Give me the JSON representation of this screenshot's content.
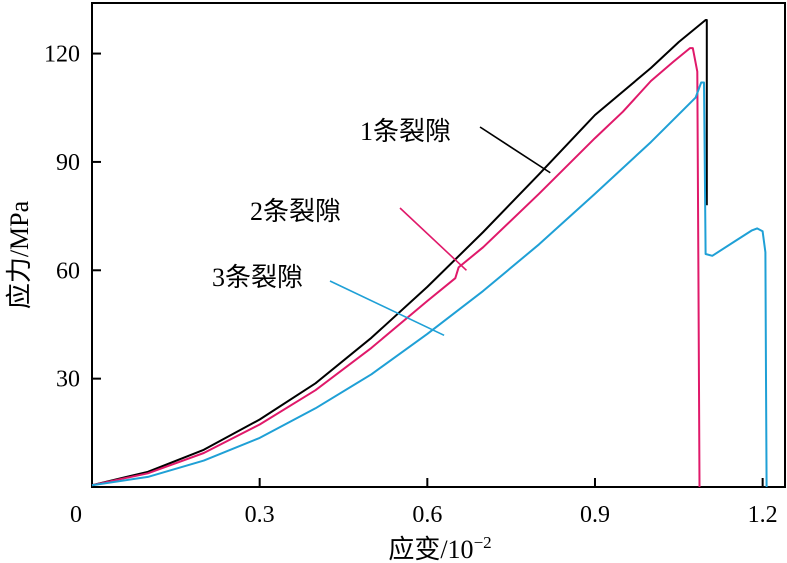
{
  "chart_data": {
    "type": "line",
    "xlabel": "应变/10",
    "xlabel_exp": "−2",
    "ylabel": "应力/MPa",
    "xlim": [
      0,
      1.24
    ],
    "ylim": [
      0,
      134
    ],
    "x_ticks": [
      0,
      0.3,
      0.6,
      0.9,
      1.2
    ],
    "x_tick_labels": [
      "0",
      "0.3",
      "0.6",
      "0.9",
      "1.2"
    ],
    "y_ticks": [
      30,
      60,
      90,
      120
    ],
    "y_tick_labels": [
      "30",
      "60",
      "90",
      "120"
    ],
    "grid": false,
    "series": [
      {
        "name": "1条裂隙",
        "color": "#000000",
        "points": [
          [
            0,
            0.5
          ],
          [
            0.1,
            4.2
          ],
          [
            0.2,
            10.3
          ],
          [
            0.3,
            18.7
          ],
          [
            0.4,
            28.7
          ],
          [
            0.5,
            41.3
          ],
          [
            0.6,
            55.4
          ],
          [
            0.7,
            70.6
          ],
          [
            0.8,
            86.6
          ],
          [
            0.9,
            103
          ],
          [
            1.0,
            116
          ],
          [
            1.05,
            123.2
          ],
          [
            1.098,
            129.3
          ],
          [
            1.1,
            129.3
          ],
          [
            1.1,
            78
          ]
        ],
        "label_anchor": [
          0.82,
          87
        ]
      },
      {
        "name": "2条裂隙",
        "color": "#e0196a",
        "points": [
          [
            0,
            0.5
          ],
          [
            0.1,
            3.8
          ],
          [
            0.2,
            9.4
          ],
          [
            0.3,
            17.3
          ],
          [
            0.4,
            26.8
          ],
          [
            0.5,
            38.5
          ],
          [
            0.6,
            51.5
          ],
          [
            0.65,
            57.8
          ],
          [
            0.656,
            60.8
          ],
          [
            0.7,
            66.4
          ],
          [
            0.8,
            81.2
          ],
          [
            0.9,
            96.6
          ],
          [
            0.95,
            103.9
          ],
          [
            1.0,
            112.4
          ],
          [
            1.04,
            117.7
          ],
          [
            1.07,
            121.5
          ],
          [
            1.075,
            121.5
          ],
          [
            1.083,
            115
          ],
          [
            1.085,
            60
          ],
          [
            1.087,
            0
          ]
        ],
        "label_anchor": [
          0.67,
          60
        ]
      },
      {
        "name": "3条裂隙",
        "color": "#1fa0d6",
        "points": [
          [
            0,
            0.5
          ],
          [
            0.1,
            2.8
          ],
          [
            0.2,
            7.3
          ],
          [
            0.3,
            13.6
          ],
          [
            0.4,
            21.8
          ],
          [
            0.5,
            31.2
          ],
          [
            0.6,
            42.4
          ],
          [
            0.7,
            54.3
          ],
          [
            0.8,
            67.2
          ],
          [
            0.9,
            81.2
          ],
          [
            1.0,
            95.5
          ],
          [
            1.08,
            107.8
          ],
          [
            1.09,
            112
          ],
          [
            1.095,
            112
          ],
          [
            1.097,
            80
          ],
          [
            1.098,
            64.5
          ],
          [
            1.11,
            64
          ],
          [
            1.15,
            68
          ],
          [
            1.18,
            71
          ],
          [
            1.19,
            71.6
          ],
          [
            1.2,
            70.8
          ],
          [
            1.205,
            65
          ],
          [
            1.206,
            30
          ],
          [
            1.207,
            0
          ]
        ],
        "label_anchor": [
          0.63,
          42
        ]
      }
    ],
    "annotations": [
      {
        "text": "1条裂隙",
        "series": 0
      },
      {
        "text": "2条裂隙",
        "series": 1
      },
      {
        "text": "3条裂隙",
        "series": 2
      }
    ]
  }
}
